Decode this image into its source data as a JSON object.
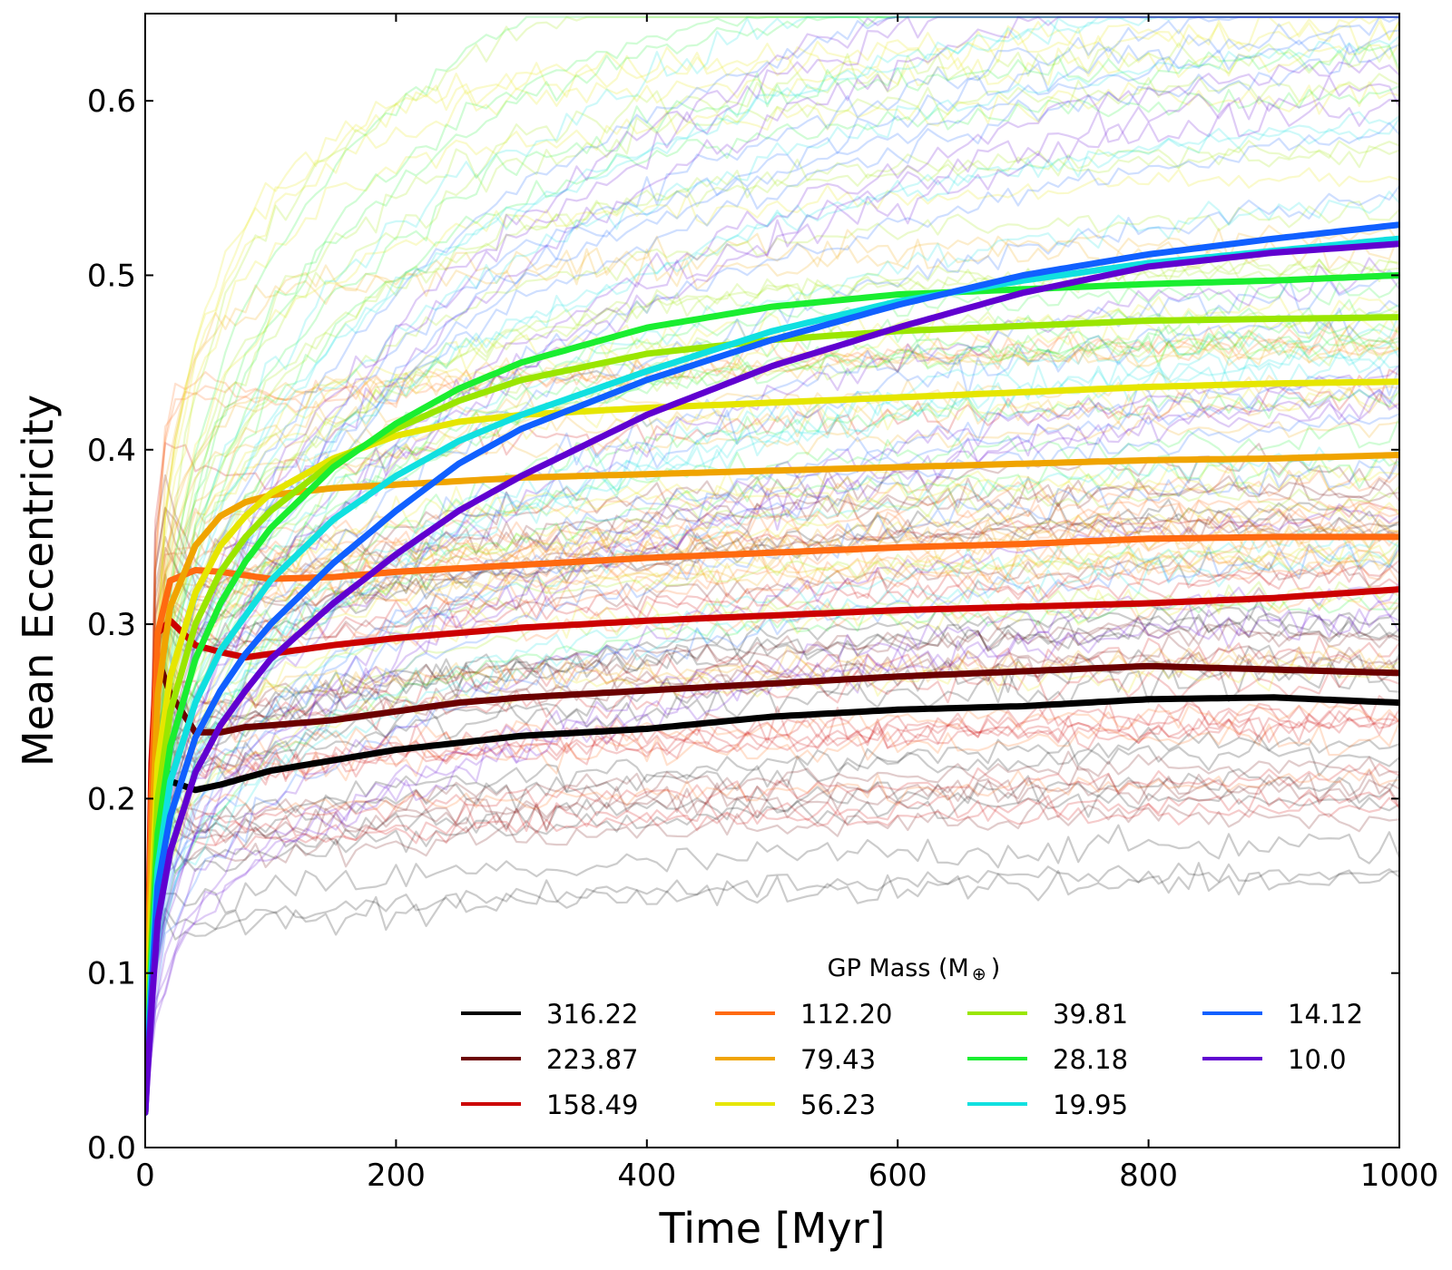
{
  "chart_data": {
    "type": "line",
    "xlabel": "Time [Myr]",
    "ylabel": "Mean Eccentricity",
    "xlim": [
      0,
      1000
    ],
    "ylim": [
      0.0,
      0.65
    ],
    "x_ticks": [
      0,
      200,
      400,
      600,
      800,
      1000
    ],
    "x_tick_labels": [
      "0",
      "200",
      "400",
      "600",
      "800",
      "1000"
    ],
    "y_ticks": [
      0.0,
      0.1,
      0.2,
      0.3,
      0.4,
      0.5,
      0.6
    ],
    "y_tick_labels": [
      "0.0",
      "0.1",
      "0.2",
      "0.3",
      "0.4",
      "0.5",
      "0.6"
    ],
    "grid": false,
    "legend_title": "GP Mass (M",
    "legend_title_symbol": "⊕",
    "legend_title_close": ")",
    "legend_position": "lower-right",
    "x": [
      0,
      5,
      10,
      20,
      40,
      60,
      80,
      100,
      150,
      200,
      250,
      300,
      400,
      500,
      600,
      700,
      800,
      900,
      1000
    ],
    "series": [
      {
        "name": "316.22",
        "color": "#000000",
        "values": [
          0.02,
          0.15,
          0.23,
          0.21,
          0.205,
          0.208,
          0.212,
          0.216,
          0.222,
          0.228,
          0.232,
          0.236,
          0.24,
          0.247,
          0.251,
          0.253,
          0.257,
          0.258,
          0.255
        ]
      },
      {
        "name": "223.87",
        "color": "#6b0000",
        "values": [
          0.02,
          0.2,
          0.28,
          0.26,
          0.238,
          0.238,
          0.241,
          0.242,
          0.245,
          0.25,
          0.255,
          0.258,
          0.262,
          0.266,
          0.27,
          0.273,
          0.276,
          0.274,
          0.272
        ]
      },
      {
        "name": "158.49",
        "color": "#cc0000",
        "values": [
          0.02,
          0.22,
          0.295,
          0.302,
          0.288,
          0.284,
          0.281,
          0.283,
          0.288,
          0.292,
          0.295,
          0.298,
          0.302,
          0.305,
          0.308,
          0.31,
          0.312,
          0.315,
          0.32
        ]
      },
      {
        "name": "112.20",
        "color": "#ff6a10",
        "values": [
          0.02,
          0.2,
          0.295,
          0.325,
          0.331,
          0.33,
          0.328,
          0.326,
          0.327,
          0.33,
          0.332,
          0.334,
          0.338,
          0.341,
          0.344,
          0.346,
          0.349,
          0.35,
          0.35
        ]
      },
      {
        "name": "79.43",
        "color": "#f0a400",
        "values": [
          0.02,
          0.17,
          0.26,
          0.31,
          0.345,
          0.362,
          0.37,
          0.374,
          0.378,
          0.38,
          0.382,
          0.384,
          0.386,
          0.388,
          0.39,
          0.392,
          0.394,
          0.395,
          0.397
        ]
      },
      {
        "name": "56.23",
        "color": "#e6e600",
        "values": [
          0.02,
          0.14,
          0.22,
          0.27,
          0.318,
          0.345,
          0.362,
          0.375,
          0.395,
          0.408,
          0.416,
          0.42,
          0.424,
          0.427,
          0.43,
          0.433,
          0.436,
          0.438,
          0.439
        ]
      },
      {
        "name": "39.81",
        "color": "#9ae600",
        "values": [
          0.02,
          0.12,
          0.2,
          0.25,
          0.3,
          0.33,
          0.35,
          0.365,
          0.393,
          0.412,
          0.428,
          0.44,
          0.455,
          0.463,
          0.468,
          0.471,
          0.474,
          0.475,
          0.476
        ]
      },
      {
        "name": "28.18",
        "color": "#1aee30",
        "values": [
          0.02,
          0.11,
          0.18,
          0.23,
          0.28,
          0.312,
          0.336,
          0.355,
          0.39,
          0.415,
          0.435,
          0.45,
          0.47,
          0.482,
          0.489,
          0.492,
          0.495,
          0.497,
          0.5
        ]
      },
      {
        "name": "19.95",
        "color": "#10e0e0",
        "values": [
          0.02,
          0.1,
          0.16,
          0.21,
          0.255,
          0.285,
          0.305,
          0.325,
          0.36,
          0.385,
          0.405,
          0.42,
          0.445,
          0.468,
          0.485,
          0.497,
          0.507,
          0.514,
          0.521
        ]
      },
      {
        "name": "14.12",
        "color": "#1060ff",
        "values": [
          0.02,
          0.09,
          0.15,
          0.19,
          0.235,
          0.262,
          0.283,
          0.3,
          0.335,
          0.365,
          0.392,
          0.412,
          0.44,
          0.463,
          0.483,
          0.5,
          0.512,
          0.521,
          0.529
        ]
      },
      {
        "name": "10.0",
        "color": "#6000d0",
        "values": [
          0.02,
          0.08,
          0.13,
          0.17,
          0.215,
          0.242,
          0.262,
          0.28,
          0.312,
          0.34,
          0.365,
          0.385,
          0.42,
          0.448,
          0.47,
          0.49,
          0.505,
          0.513,
          0.518
        ]
      }
    ]
  }
}
